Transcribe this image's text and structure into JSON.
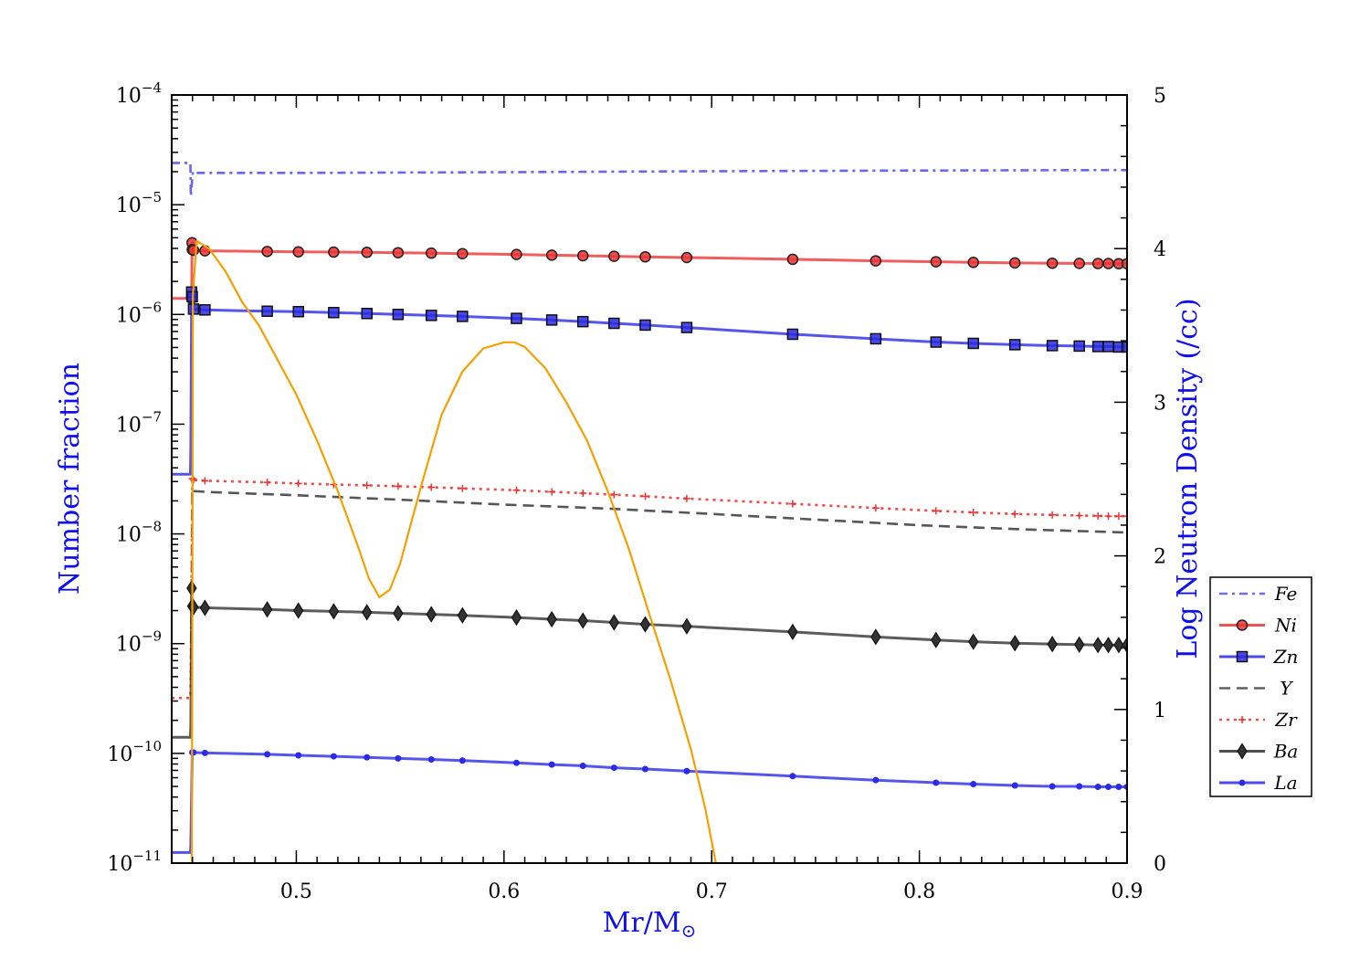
{
  "chart_data": {
    "type": "line",
    "xlabel_main": "Mr/M",
    "xlabel_sub": "⊙",
    "ylabel": "Number fraction",
    "ylabel_right": "Log Neutron Density (/cc)",
    "xlim": [
      0.44,
      0.9
    ],
    "ylim_log10": [
      -11,
      -4
    ],
    "y_scale": "log",
    "ylim_right": [
      0,
      5
    ],
    "x_ticks": [
      {
        "value": 0.5,
        "label": "0.5"
      },
      {
        "value": 0.6,
        "label": "0.6"
      },
      {
        "value": 0.7,
        "label": "0.7"
      },
      {
        "value": 0.8,
        "label": "0.8"
      },
      {
        "value": 0.9,
        "label": "0.9"
      }
    ],
    "y_ticks": [
      {
        "exp": -4,
        "base": "10",
        "sup": "−4"
      },
      {
        "exp": -5,
        "base": "10",
        "sup": "−5"
      },
      {
        "exp": -6,
        "base": "10",
        "sup": "−6"
      },
      {
        "exp": -7,
        "base": "10",
        "sup": "−7"
      },
      {
        "exp": -8,
        "base": "10",
        "sup": "−8"
      },
      {
        "exp": -9,
        "base": "10",
        "sup": "−9"
      },
      {
        "exp": -10,
        "base": "10",
        "sup": "−10"
      },
      {
        "exp": -11,
        "base": "10",
        "sup": "−11"
      }
    ],
    "y_right_ticks": [
      {
        "value": 0,
        "label": "0"
      },
      {
        "value": 1,
        "label": "1"
      },
      {
        "value": 2,
        "label": "2"
      },
      {
        "value": 3,
        "label": "3"
      },
      {
        "value": 4,
        "label": "4"
      },
      {
        "value": 5,
        "label": "5"
      }
    ],
    "legend_position": "right",
    "series": [
      {
        "name": "Fe",
        "color": "#5555ee",
        "dash": "dotdash",
        "marker": "none",
        "points": [
          [
            0.44,
            2.4e-05
          ],
          [
            0.449,
            2.4e-05
          ],
          [
            0.4492,
            1.2e-05
          ],
          [
            0.4502,
            2e-05
          ],
          [
            0.451,
            1.95e-05
          ],
          [
            0.453,
            1.95e-05
          ],
          [
            0.5,
            1.95e-05
          ],
          [
            0.6,
            1.98e-05
          ],
          [
            0.7,
            2.02e-05
          ],
          [
            0.8,
            2.05e-05
          ],
          [
            0.9,
            2.07e-05
          ]
        ]
      },
      {
        "name": "Ni",
        "color": "#ee3333",
        "dash": "solid",
        "marker": "circle",
        "points": [
          [
            0.44,
            1.4e-06
          ],
          [
            0.4496,
            1.4e-06
          ],
          [
            0.4498,
            4.5e-06
          ],
          [
            0.4499,
            3.9e-06
          ],
          [
            0.4505,
            3.85e-06
          ],
          [
            0.456,
            3.8e-06
          ],
          [
            0.486,
            3.75e-06
          ],
          [
            0.501,
            3.72e-06
          ],
          [
            0.518,
            3.7e-06
          ],
          [
            0.534,
            3.68e-06
          ],
          [
            0.549,
            3.65e-06
          ],
          [
            0.565,
            3.62e-06
          ],
          [
            0.58,
            3.58e-06
          ],
          [
            0.606,
            3.52e-06
          ],
          [
            0.623,
            3.47e-06
          ],
          [
            0.638,
            3.43e-06
          ],
          [
            0.653,
            3.39e-06
          ],
          [
            0.668,
            3.35e-06
          ],
          [
            0.688,
            3.3e-06
          ],
          [
            0.739,
            3.18e-06
          ],
          [
            0.779,
            3.08e-06
          ],
          [
            0.808,
            3.02e-06
          ],
          [
            0.826,
            2.98e-06
          ],
          [
            0.846,
            2.95e-06
          ],
          [
            0.864,
            2.93e-06
          ],
          [
            0.877,
            2.92e-06
          ],
          [
            0.886,
            2.91e-06
          ],
          [
            0.891,
            2.91e-06
          ],
          [
            0.896,
            2.9e-06
          ],
          [
            0.9,
            2.9e-06
          ]
        ]
      },
      {
        "name": "Zn",
        "color": "#2a2ae8",
        "dash": "solid",
        "marker": "square",
        "points": [
          [
            0.44,
            3.5e-08
          ],
          [
            0.449,
            3.5e-08
          ],
          [
            0.4492,
            6e-08
          ],
          [
            0.4496,
            1.6e-06
          ],
          [
            0.4499,
            1.45e-06
          ],
          [
            0.4505,
            1.12e-06
          ],
          [
            0.456,
            1.1e-06
          ],
          [
            0.486,
            1.07e-06
          ],
          [
            0.501,
            1.06e-06
          ],
          [
            0.518,
            1.04e-06
          ],
          [
            0.534,
            1.02e-06
          ],
          [
            0.549,
            1e-06
          ],
          [
            0.565,
            9.8e-07
          ],
          [
            0.58,
            9.6e-07
          ],
          [
            0.606,
            9.2e-07
          ],
          [
            0.623,
            8.9e-07
          ],
          [
            0.638,
            8.6e-07
          ],
          [
            0.653,
            8.3e-07
          ],
          [
            0.668,
            8e-07
          ],
          [
            0.688,
            7.6e-07
          ],
          [
            0.739,
            6.6e-07
          ],
          [
            0.779,
            6e-07
          ],
          [
            0.808,
            5.6e-07
          ],
          [
            0.826,
            5.45e-07
          ],
          [
            0.846,
            5.3e-07
          ],
          [
            0.864,
            5.2e-07
          ],
          [
            0.877,
            5.15e-07
          ],
          [
            0.886,
            5.1e-07
          ],
          [
            0.891,
            5.1e-07
          ],
          [
            0.896,
            5.05e-07
          ],
          [
            0.9,
            5.05e-07
          ]
        ]
      },
      {
        "name": "Y",
        "color": "#444444",
        "dash": "dashed",
        "marker": "none",
        "points": [
          [
            0.4494,
            5e-10
          ],
          [
            0.4499,
            2.6e-08
          ],
          [
            0.451,
            2.45e-08
          ],
          [
            0.46,
            2.4e-08
          ],
          [
            0.5,
            2.25e-08
          ],
          [
            0.55,
            2.05e-08
          ],
          [
            0.6,
            1.85e-08
          ],
          [
            0.65,
            1.7e-08
          ],
          [
            0.7,
            1.52e-08
          ],
          [
            0.75,
            1.35e-08
          ],
          [
            0.8,
            1.2e-08
          ],
          [
            0.85,
            1.1e-08
          ],
          [
            0.9,
            1.03e-08
          ]
        ]
      },
      {
        "name": "Zr",
        "color": "#ee3333",
        "dash": "dotted",
        "marker": "plus",
        "points": [
          [
            0.44,
            3.2e-10
          ],
          [
            0.449,
            3.2e-10
          ],
          [
            0.4494,
            1.4e-09
          ],
          [
            0.4499,
            3.2e-08
          ],
          [
            0.4505,
            3.1e-08
          ],
          [
            0.456,
            3.05e-08
          ],
          [
            0.486,
            2.95e-08
          ],
          [
            0.501,
            2.88e-08
          ],
          [
            0.518,
            2.82e-08
          ],
          [
            0.534,
            2.77e-08
          ],
          [
            0.549,
            2.72e-08
          ],
          [
            0.565,
            2.66e-08
          ],
          [
            0.58,
            2.6e-08
          ],
          [
            0.606,
            2.5e-08
          ],
          [
            0.623,
            2.42e-08
          ],
          [
            0.638,
            2.35e-08
          ],
          [
            0.653,
            2.28e-08
          ],
          [
            0.668,
            2.2e-08
          ],
          [
            0.688,
            2.1e-08
          ],
          [
            0.739,
            1.88e-08
          ],
          [
            0.779,
            1.72e-08
          ],
          [
            0.808,
            1.62e-08
          ],
          [
            0.826,
            1.57e-08
          ],
          [
            0.846,
            1.52e-08
          ],
          [
            0.864,
            1.49e-08
          ],
          [
            0.877,
            1.47e-08
          ],
          [
            0.886,
            1.46e-08
          ],
          [
            0.891,
            1.45e-08
          ],
          [
            0.896,
            1.45e-08
          ],
          [
            0.9,
            1.45e-08
          ]
        ]
      },
      {
        "name": "Ba",
        "color": "#333333",
        "dash": "solid",
        "marker": "diamond",
        "points": [
          [
            0.44,
            1.4e-10
          ],
          [
            0.449,
            1.4e-10
          ],
          [
            0.4492,
            1.8e-10
          ],
          [
            0.4496,
            3.2e-09
          ],
          [
            0.4499,
            2.2e-09
          ],
          [
            0.4505,
            2.15e-09
          ],
          [
            0.456,
            2.12e-09
          ],
          [
            0.486,
            2.05e-09
          ],
          [
            0.501,
            2e-09
          ],
          [
            0.518,
            1.97e-09
          ],
          [
            0.534,
            1.93e-09
          ],
          [
            0.549,
            1.89e-09
          ],
          [
            0.565,
            1.85e-09
          ],
          [
            0.58,
            1.81e-09
          ],
          [
            0.606,
            1.73e-09
          ],
          [
            0.623,
            1.67e-09
          ],
          [
            0.638,
            1.62e-09
          ],
          [
            0.653,
            1.56e-09
          ],
          [
            0.668,
            1.5e-09
          ],
          [
            0.688,
            1.44e-09
          ],
          [
            0.739,
            1.28e-09
          ],
          [
            0.779,
            1.15e-09
          ],
          [
            0.808,
            1.08e-09
          ],
          [
            0.826,
            1.04e-09
          ],
          [
            0.846,
            1.01e-09
          ],
          [
            0.864,
            9.9e-10
          ],
          [
            0.877,
            9.8e-10
          ],
          [
            0.886,
            9.7e-10
          ],
          [
            0.891,
            9.7e-10
          ],
          [
            0.896,
            9.7e-10
          ],
          [
            0.9,
            9.7e-10
          ]
        ]
      },
      {
        "name": "La",
        "color": "#2a2ae8",
        "dash": "solid",
        "marker": "dot",
        "points": [
          [
            0.44,
            1.25e-11
          ],
          [
            0.449,
            1.25e-11
          ],
          [
            0.4492,
            1.45e-11
          ],
          [
            0.4499,
            1.02e-10
          ],
          [
            0.4505,
            1.02e-10
          ],
          [
            0.456,
            1.01e-10
          ],
          [
            0.486,
            9.8e-11
          ],
          [
            0.501,
            9.6e-11
          ],
          [
            0.518,
            9.4e-11
          ],
          [
            0.534,
            9.2e-11
          ],
          [
            0.549,
            9e-11
          ],
          [
            0.565,
            8.8e-11
          ],
          [
            0.58,
            8.6e-11
          ],
          [
            0.606,
            8.2e-11
          ],
          [
            0.623,
            7.9e-11
          ],
          [
            0.638,
            7.7e-11
          ],
          [
            0.653,
            7.4e-11
          ],
          [
            0.668,
            7.2e-11
          ],
          [
            0.688,
            6.9e-11
          ],
          [
            0.739,
            6.2e-11
          ],
          [
            0.779,
            5.7e-11
          ],
          [
            0.808,
            5.4e-11
          ],
          [
            0.826,
            5.25e-11
          ],
          [
            0.846,
            5.1e-11
          ],
          [
            0.864,
            5e-11
          ],
          [
            0.877,
            5e-11
          ],
          [
            0.886,
            4.95e-11
          ],
          [
            0.891,
            4.95e-11
          ],
          [
            0.896,
            4.95e-11
          ],
          [
            0.9,
            4.95e-11
          ]
        ]
      }
    ],
    "neutron_density": {
      "color": "#f5a000",
      "axis": "right",
      "points": [
        [
          0.4497,
          0.0
        ],
        [
          0.4499,
          1.5
        ],
        [
          0.4502,
          3.7
        ],
        [
          0.452,
          4.05
        ],
        [
          0.458,
          4.0
        ],
        [
          0.466,
          3.85
        ],
        [
          0.474,
          3.65
        ],
        [
          0.482,
          3.5
        ],
        [
          0.49,
          3.3
        ],
        [
          0.5,
          3.05
        ],
        [
          0.51,
          2.75
        ],
        [
          0.52,
          2.42
        ],
        [
          0.53,
          2.05
        ],
        [
          0.535,
          1.85
        ],
        [
          0.54,
          1.73
        ],
        [
          0.545,
          1.78
        ],
        [
          0.55,
          1.95
        ],
        [
          0.56,
          2.45
        ],
        [
          0.57,
          2.92
        ],
        [
          0.58,
          3.2
        ],
        [
          0.59,
          3.35
        ],
        [
          0.6,
          3.39
        ],
        [
          0.605,
          3.39
        ],
        [
          0.61,
          3.36
        ],
        [
          0.62,
          3.22
        ],
        [
          0.63,
          3.0
        ],
        [
          0.64,
          2.75
        ],
        [
          0.65,
          2.42
        ],
        [
          0.66,
          2.05
        ],
        [
          0.67,
          1.62
        ],
        [
          0.68,
          1.2
        ],
        [
          0.69,
          0.74
        ],
        [
          0.697,
          0.35
        ],
        [
          0.702,
          0.0
        ]
      ]
    }
  }
}
